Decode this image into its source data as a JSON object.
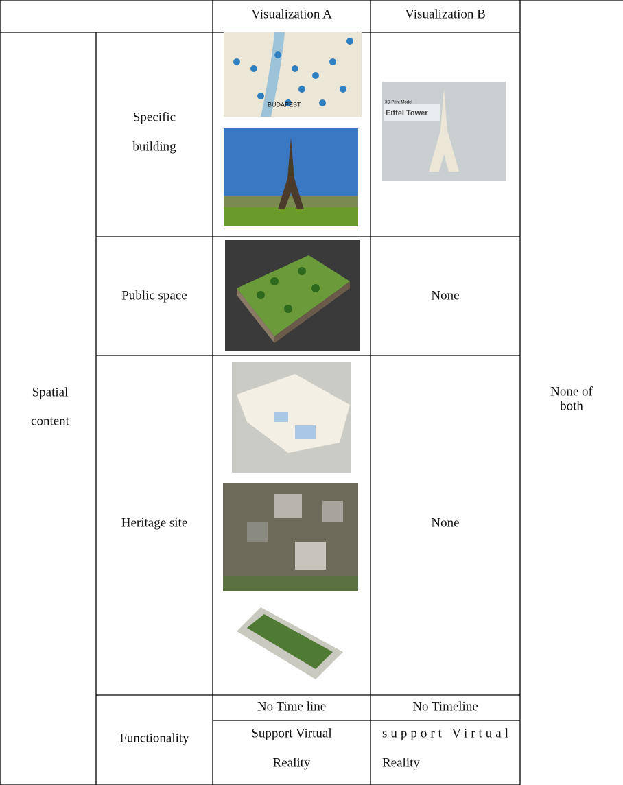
{
  "table": {
    "header": [
      "Visualization A",
      "Visualization B"
    ],
    "group_label": [
      "Spatial",
      "content"
    ],
    "group_value": [
      "None of",
      "both"
    ],
    "rows": [
      {
        "label": [
          "Specific",
          "building"
        ],
        "b_image_text": [
          "3D Print Model",
          "Eiffel Tower"
        ],
        "a_image_text": "BUDAPEST"
      },
      {
        "label": [
          "Public space"
        ],
        "b": "None"
      },
      {
        "label": [
          "Heritage site"
        ],
        "b": "None"
      },
      {
        "label": [
          "Functionality"
        ],
        "a": [
          "No Time line",
          "Support Virtual",
          "Reality"
        ],
        "b": [
          "No Timeline",
          "support Virtual",
          "Reality"
        ]
      }
    ]
  }
}
